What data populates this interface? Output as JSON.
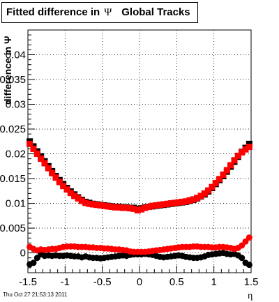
{
  "title": {
    "prefix": "Fitted difference in",
    "symbol": "Ψ",
    "suffix": "Global Tracks"
  },
  "footer": "Thu Oct 27 21:53:13 2011",
  "chart_data": {
    "type": "scatter",
    "xlabel": "η",
    "ylabel": "difference in Ψ",
    "xlim": [
      -1.5,
      1.5
    ],
    "ylim": [
      -0.004,
      0.045
    ],
    "grid": true,
    "x_ticks": [
      "-1.5",
      "-1",
      "-0.5",
      "0",
      "0.5",
      "1",
      "1.5"
    ],
    "y_ticks": [
      "0",
      "0.005",
      "0.01",
      "0.015",
      "0.02",
      "0.025",
      "0.03",
      "0.035",
      "0.04"
    ],
    "x": [
      -1.475,
      -1.425,
      -1.375,
      -1.325,
      -1.275,
      -1.225,
      -1.175,
      -1.125,
      -1.075,
      -1.025,
      -0.975,
      -0.925,
      -0.875,
      -0.825,
      -0.775,
      -0.725,
      -0.675,
      -0.625,
      -0.575,
      -0.525,
      -0.475,
      -0.425,
      -0.375,
      -0.325,
      -0.275,
      -0.225,
      -0.175,
      -0.125,
      -0.075,
      -0.025,
      0.025,
      0.075,
      0.125,
      0.175,
      0.225,
      0.275,
      0.325,
      0.375,
      0.425,
      0.475,
      0.525,
      0.575,
      0.625,
      0.675,
      0.725,
      0.775,
      0.825,
      0.875,
      0.925,
      0.975,
      1.025,
      1.075,
      1.125,
      1.175,
      1.225,
      1.275,
      1.325,
      1.375,
      1.425,
      1.475
    ],
    "series": [
      {
        "color": "#000000",
        "marker": "square",
        "values": [
          0.0225,
          0.0215,
          0.0205,
          0.0195,
          0.0185,
          0.0175,
          0.0165,
          0.0155,
          0.0147,
          0.0139,
          0.0131,
          0.0124,
          0.0118,
          0.0112,
          0.0107,
          0.0103,
          0.0101,
          0.0099,
          0.0098,
          0.0097,
          0.0096,
          0.0095,
          0.0094,
          0.0093,
          0.0093,
          0.0092,
          0.0092,
          0.0091,
          0.0091,
          0.0089,
          0.009,
          0.0092,
          0.0093,
          0.0094,
          0.0095,
          0.0096,
          0.0097,
          0.0098,
          0.0099,
          0.01,
          0.0101,
          0.0102,
          0.0103,
          0.0105,
          0.0107,
          0.011,
          0.0114,
          0.0118,
          0.0124,
          0.0131,
          0.0139,
          0.0147,
          0.0155,
          0.0164,
          0.0174,
          0.0184,
          0.0194,
          0.0204,
          0.0212,
          0.022
        ]
      },
      {
        "color": "#ff0000",
        "marker": "square",
        "values": [
          0.022,
          0.021,
          0.02,
          0.019,
          0.0181,
          0.0171,
          0.0161,
          0.0152,
          0.0143,
          0.0135,
          0.0128,
          0.0121,
          0.0115,
          0.011,
          0.0105,
          0.0101,
          0.0099,
          0.0098,
          0.0097,
          0.0096,
          0.0095,
          0.0094,
          0.0093,
          0.0092,
          0.0092,
          0.0091,
          0.0091,
          0.009,
          0.0089,
          0.0086,
          0.0088,
          0.0091,
          0.0093,
          0.0095,
          0.0096,
          0.0097,
          0.0098,
          0.0099,
          0.01,
          0.0101,
          0.0102,
          0.0103,
          0.0104,
          0.0106,
          0.0108,
          0.0111,
          0.0115,
          0.012,
          0.0126,
          0.0133,
          0.0141,
          0.0149,
          0.0158,
          0.0167,
          0.0177,
          0.0187,
          0.0196,
          0.0203,
          0.0209,
          0.0214
        ]
      },
      {
        "color": "#000000",
        "marker": "circle",
        "values": [
          -0.0023,
          -0.002,
          -0.001,
          -0.0003,
          -0.0006,
          -0.0005,
          -0.0006,
          -0.0005,
          -0.0006,
          -0.0006,
          -0.0005,
          -0.0006,
          -0.0007,
          -0.0007,
          -0.0009,
          -0.0007,
          -0.0009,
          -0.001,
          -0.001,
          -0.0011,
          -0.001,
          -0.0009,
          -0.0008,
          -0.0007,
          -0.0006,
          -0.0005,
          -0.0006,
          -0.0004,
          -0.0003,
          -0.0003,
          -0.0003,
          -0.0002,
          -0.0003,
          -0.0004,
          -0.0006,
          -0.0008,
          -0.0009,
          -0.0008,
          -0.0007,
          -0.0006,
          -0.0005,
          -0.0006,
          -0.0008,
          -0.0009,
          -0.001,
          -0.001,
          -0.0009,
          -0.0007,
          -0.0004,
          -0.0003,
          -0.0002,
          -0.0001,
          0.0,
          -0.0002,
          -0.0003,
          -0.0002,
          -0.0005,
          -0.001,
          -0.002,
          -0.0024
        ]
      },
      {
        "color": "#ff0000",
        "marker": "circle",
        "values": [
          0.0012,
          0.0008,
          0.0005,
          0.0007,
          0.0006,
          0.0007,
          0.0008,
          0.0008,
          0.001,
          0.0012,
          0.0013,
          0.0013,
          0.0013,
          0.0012,
          0.0012,
          0.0012,
          0.0011,
          0.0011,
          0.001,
          0.001,
          0.0009,
          0.0009,
          0.0008,
          0.0007,
          0.0007,
          0.0006,
          0.0005,
          0.0003,
          0.0002,
          0.0002,
          0.0002,
          0.0002,
          0.0003,
          0.0004,
          0.0005,
          0.0006,
          0.0007,
          0.0008,
          0.0009,
          0.001,
          0.0011,
          0.0012,
          0.0012,
          0.0012,
          0.0013,
          0.0013,
          0.0012,
          0.0012,
          0.0012,
          0.0011,
          0.0011,
          0.0012,
          0.0012,
          0.0011,
          0.001,
          0.0008,
          0.001,
          0.0015,
          0.0023,
          0.0031
        ]
      }
    ]
  }
}
